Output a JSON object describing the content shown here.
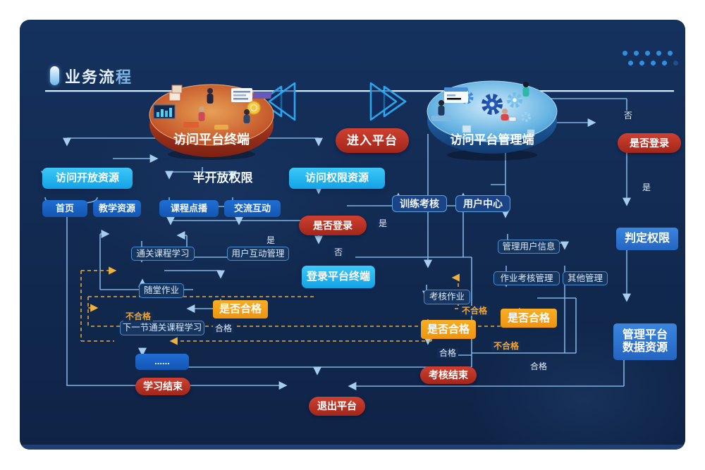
{
  "header": {
    "title_main": "业务流",
    "title_accent": "程"
  },
  "discs": {
    "left_label": "访问平台终端",
    "right_label": "访问平台管理端",
    "enter_button": "进入平台"
  },
  "nodes": {
    "visit_open": "访问开放资源",
    "semi_open": "半开放权限",
    "visit_perm": "访问权限资源",
    "home": "首页",
    "teach_res": "教学资源",
    "course_vod": "课程点播",
    "interact": "交流互动",
    "login_q_mid": "是否登录",
    "training": "训练考核",
    "user_center": "用户中心",
    "pass_course": "通关课程学习",
    "user_interact_mgmt": "用户互动管理",
    "login_terminal": "登录平台终端",
    "quiz": "随堂作业",
    "pass1": "是否合格",
    "next_course": "下一节通关课程学习",
    "dots_node": "......",
    "study_end": "学习结束",
    "assess_hw": "考核作业",
    "pass2": "是否合格",
    "assess_end": "考核结束",
    "mgmt_user": "管理用户信息",
    "hw_assess_mgmt": "作业考核管理",
    "other_mgmt": "其他管理",
    "pass3": "是否合格",
    "login_q_right": "是否登录",
    "judge_perm": "判定权限",
    "mgmt_data": "管理平台\n数据资源",
    "exit": "退出平台"
  },
  "flow_labels": {
    "no_right": "否",
    "yes_right": "是",
    "yes_mid": "是",
    "yes_left": "是",
    "no_mid": "否",
    "pass_a": "合格",
    "pass_b": "合格",
    "pass_c": "合格",
    "fail_a": "不合格",
    "fail_b": "不合格",
    "fail_c": "不合格"
  },
  "colors": {
    "background": "#122b52",
    "cyan_node": "#1fb4ec",
    "blue_node": "#1a63c8",
    "outline_border": "#4a8ed0",
    "orange_node": "#f5a31d",
    "red_pill": "#b93025",
    "bright_blue": "#2e74d2",
    "line": "#7fb2de",
    "dashed_line": "#ecaa3e",
    "title_text": "#e2effc"
  }
}
